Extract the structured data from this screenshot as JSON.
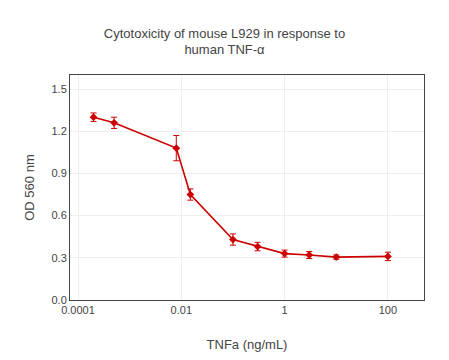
{
  "chart_data": {
    "type": "line",
    "title": "Cytotoxicity of mouse L929 in response to\nhuman TNF-α",
    "xlabel": "TNFa (ng/mL)",
    "ylabel": "OD 560 nm",
    "x": [
      0.0002,
      0.0005,
      0.008,
      0.015,
      0.1,
      0.3,
      1.0,
      3.0,
      10.0,
      100.0
    ],
    "values": [
      1.3,
      1.26,
      1.08,
      0.75,
      0.43,
      0.38,
      0.33,
      0.32,
      0.305,
      0.31
    ],
    "errors": [
      0.03,
      0.04,
      0.09,
      0.04,
      0.04,
      0.03,
      0.025,
      0.025,
      0.015,
      0.03
    ],
    "color": "#cc0000",
    "marker": "diamond",
    "line_style": "solid",
    "log": "x",
    "xlim": [
      7e-05,
      500
    ],
    "xticks": [
      0.0001,
      0.01,
      1,
      100
    ],
    "ylim": [
      0,
      1.6
    ],
    "yticks": [
      {
        "value": 0,
        "label": "0.0"
      },
      0.3,
      0.6,
      0.9,
      1.2,
      1.5
    ],
    "grid": true
  }
}
